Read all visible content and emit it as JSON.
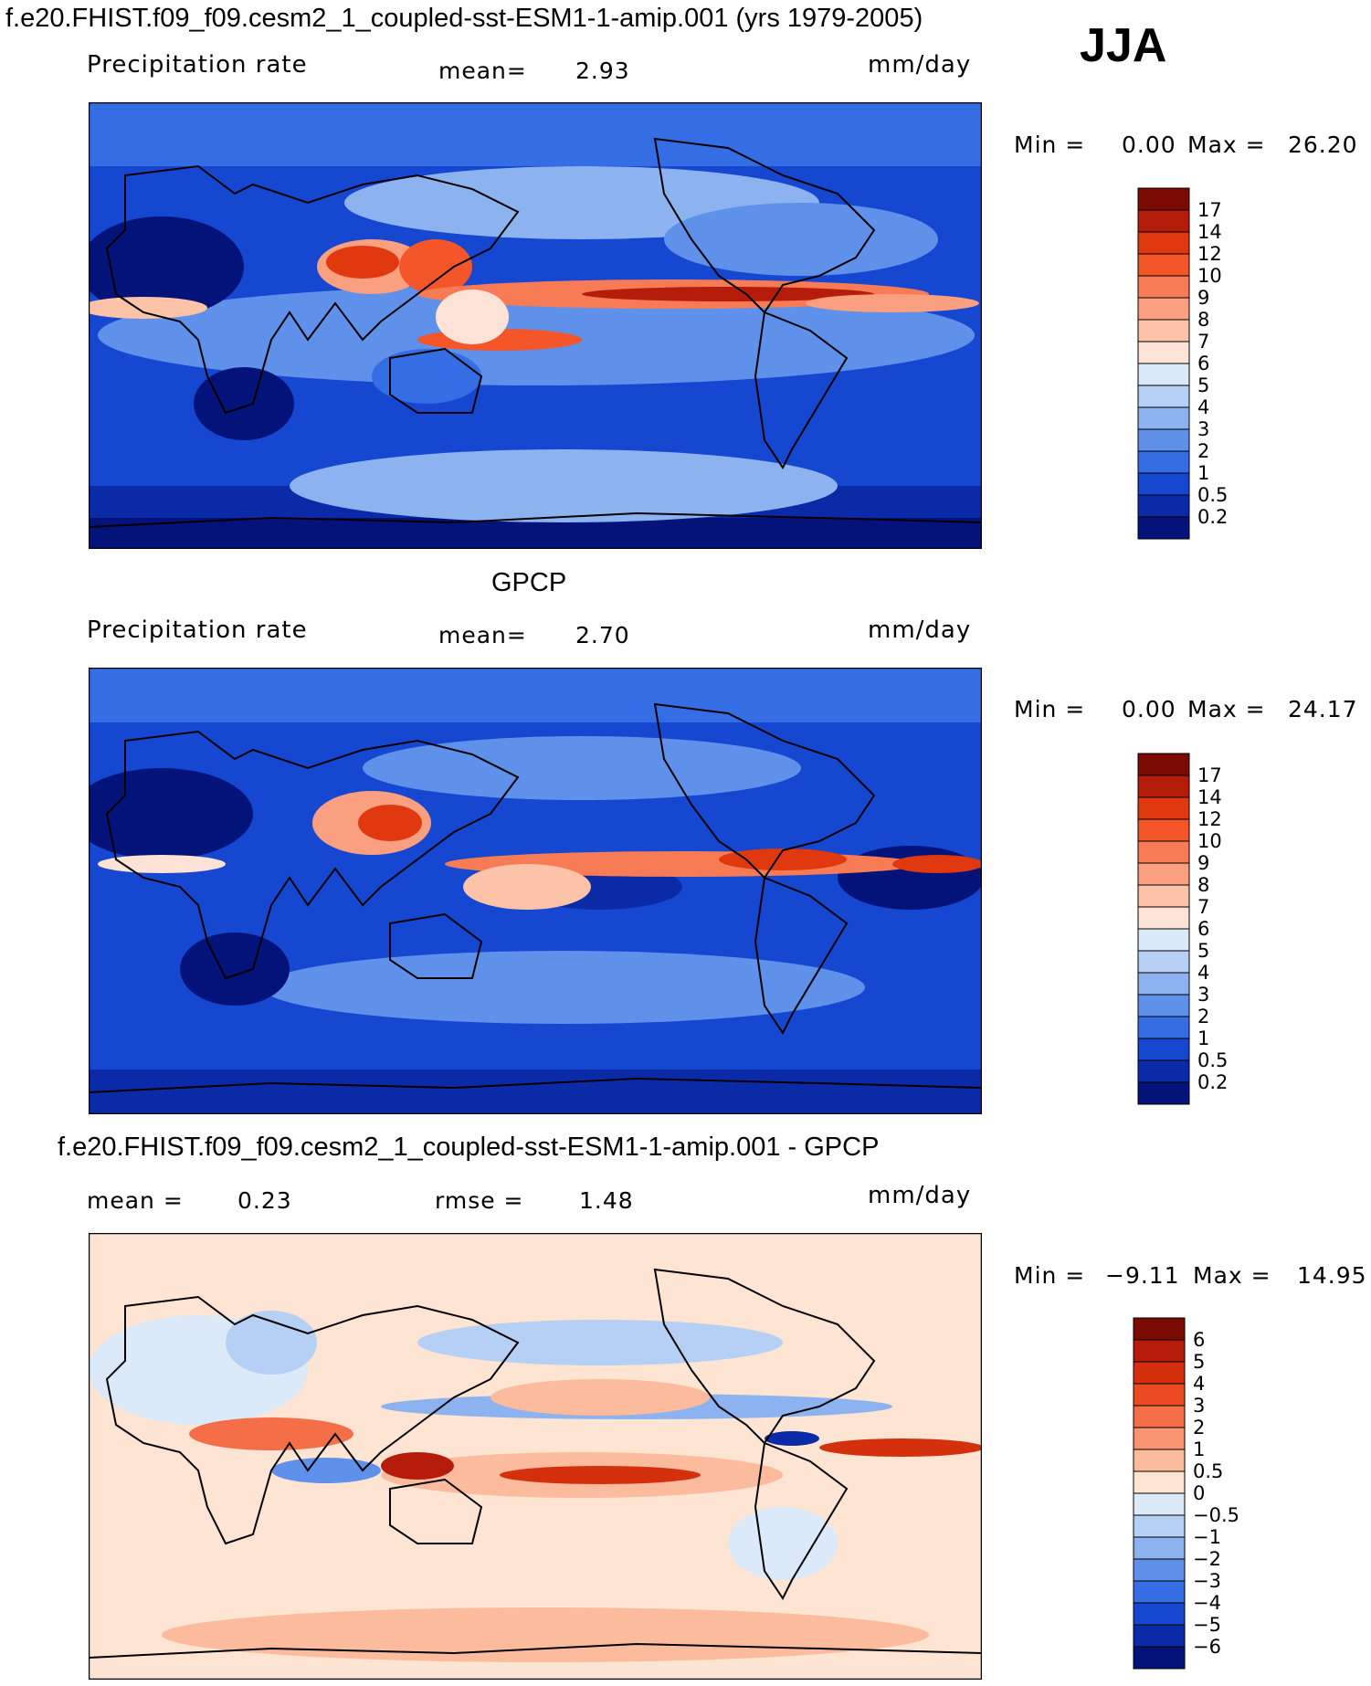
{
  "header": {
    "case_title": "f.e20.FHIST.f09_f09.cesm2_1_coupled-sst-ESM1-1-amip.001 (yrs 1979-2005)",
    "season": "JJA"
  },
  "panels": [
    {
      "id": "model",
      "title": "",
      "left_label": "Precipitation rate",
      "stat1_label": "mean=",
      "stat1_value": "2.93",
      "units": "mm/day",
      "min_label": "Min =",
      "min_value": "0.00",
      "max_label": "Max =",
      "max_value": "26.20",
      "colorbar_labels": [
        "17",
        "14",
        "12",
        "10",
        "9",
        "8",
        "7",
        "6",
        "5",
        "4",
        "3",
        "2",
        "1",
        "0.5",
        "0.2"
      ],
      "colorbar_colors": [
        "#7a0a02",
        "#b51d0a",
        "#e0380f",
        "#f4562a",
        "#f77c55",
        "#fa9f7f",
        "#fcc3a9",
        "#fde3d6",
        "#dbe9f8",
        "#b5d0f4",
        "#8cb3ef",
        "#5f90ea",
        "#356de5",
        "#1547d1",
        "#0b2aa8",
        "#03137a"
      ]
    },
    {
      "id": "obs",
      "title": "GPCP",
      "left_label": "Precipitation rate",
      "stat1_label": "mean=",
      "stat1_value": "2.70",
      "units": "mm/day",
      "min_label": "Min =",
      "min_value": "0.00",
      "max_label": "Max =",
      "max_value": "24.17",
      "colorbar_labels": [
        "17",
        "14",
        "12",
        "10",
        "9",
        "8",
        "7",
        "6",
        "5",
        "4",
        "3",
        "2",
        "1",
        "0.5",
        "0.2"
      ],
      "colorbar_colors": [
        "#7a0a02",
        "#b51d0a",
        "#e0380f",
        "#f4562a",
        "#f77c55",
        "#fa9f7f",
        "#fcc3a9",
        "#fde3d6",
        "#dbe9f8",
        "#b5d0f4",
        "#8cb3ef",
        "#5f90ea",
        "#356de5",
        "#1547d1",
        "#0b2aa8",
        "#03137a"
      ]
    },
    {
      "id": "diff",
      "title": "f.e20.FHIST.f09_f09.cesm2_1_coupled-sst-ESM1-1-amip.001 - GPCP",
      "left_label": "mean =",
      "left_value": "0.23",
      "stat1_label": "rmse =",
      "stat1_value": "1.48",
      "units": "mm/day",
      "min_label": "Min =",
      "min_value": "−9.11",
      "max_label": "Max =",
      "max_value": "14.95",
      "colorbar_labels": [
        "6",
        "5",
        "4",
        "3",
        "2",
        "1",
        "0.5",
        "0",
        "−0.5",
        "−1",
        "−2",
        "−3",
        "−4",
        "−5",
        "−6"
      ],
      "colorbar_colors": [
        "#7a0a02",
        "#b51d0a",
        "#d5300e",
        "#ec4a20",
        "#f46e47",
        "#f8946f",
        "#fbbb9c",
        "#fde4d3",
        "#dbe9f8",
        "#b5d0f4",
        "#8cb3ef",
        "#5f90ea",
        "#356de5",
        "#1547d1",
        "#0b2aa8",
        "#03137a"
      ]
    }
  ]
}
